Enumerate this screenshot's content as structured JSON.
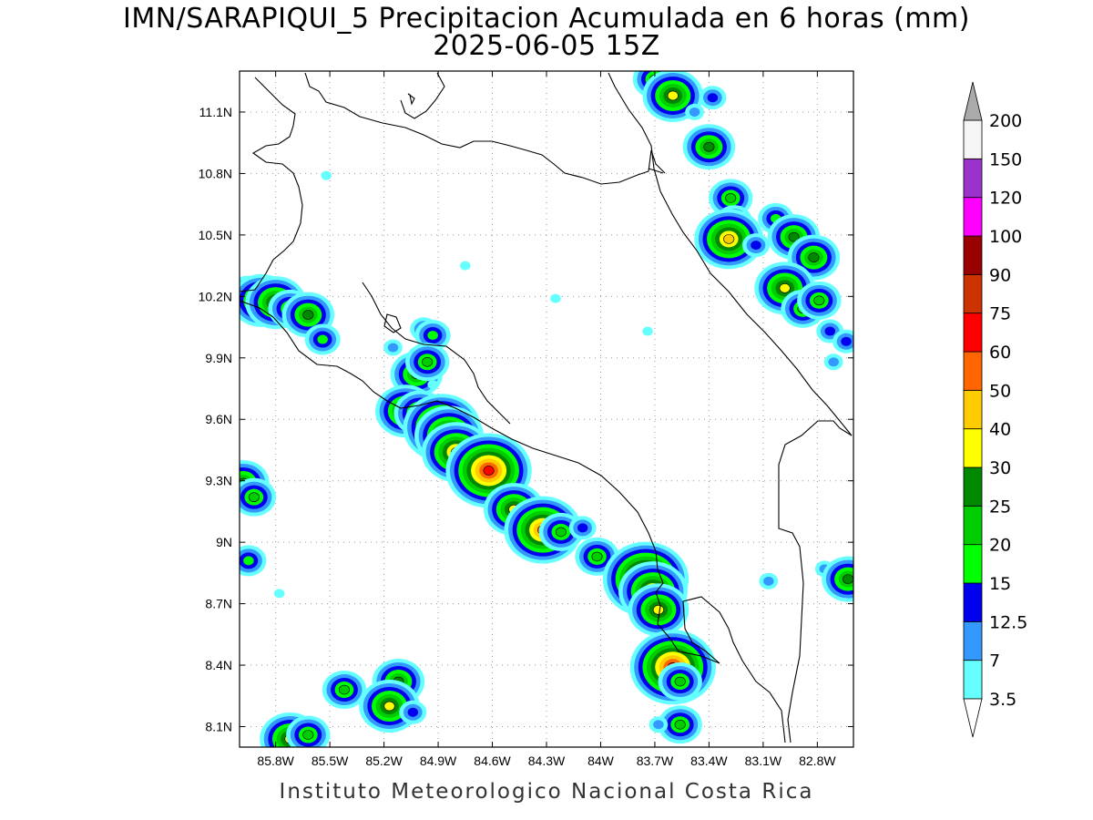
{
  "title": "IMN/SARAPIQUI_5 Precipitacion Acumulada en 6 horas (mm)",
  "subtitle": "2025-06-05 15Z",
  "footer": "Instituto Meteorologico Nacional Costa Rica",
  "map": {
    "lon_range": [
      -86.0,
      -82.6
    ],
    "lat_range": [
      8.0,
      11.3
    ],
    "lon_ticks": [
      {
        "lon": -85.8,
        "label": "85.8W"
      },
      {
        "lon": -85.5,
        "label": "85.5W"
      },
      {
        "lon": -85.2,
        "label": "85.2W"
      },
      {
        "lon": -84.9,
        "label": "84.9W"
      },
      {
        "lon": -84.6,
        "label": "84.6W"
      },
      {
        "lon": -84.3,
        "label": "84.3W"
      },
      {
        "lon": -84.0,
        "label": "84W"
      },
      {
        "lon": -83.7,
        "label": "83.7W"
      },
      {
        "lon": -83.4,
        "label": "83.4W"
      },
      {
        "lon": -83.1,
        "label": "83.1W"
      },
      {
        "lon": -82.8,
        "label": "82.8W"
      }
    ],
    "lat_ticks": [
      {
        "lat": 8.1,
        "label": "8.1N"
      },
      {
        "lat": 8.4,
        "label": "8.4N"
      },
      {
        "lat": 8.7,
        "label": "8.7N"
      },
      {
        "lat": 9.0,
        "label": "9N"
      },
      {
        "lat": 9.3,
        "label": "9.3N"
      },
      {
        "lat": 9.6,
        "label": "9.6N"
      },
      {
        "lat": 9.9,
        "label": "9.9N"
      },
      {
        "lat": 10.2,
        "label": "10.2N"
      },
      {
        "lat": 10.5,
        "label": "10.5N"
      },
      {
        "lat": 10.8,
        "label": "10.8N"
      },
      {
        "lat": 11.1,
        "label": "11.1N"
      }
    ],
    "grid": true,
    "precip_cells": [
      {
        "lon": -85.95,
        "lat": 10.19,
        "value": 25
      },
      {
        "lon": -85.88,
        "lat": 10.18,
        "value": 30
      },
      {
        "lon": -85.8,
        "lat": 10.17,
        "value": 30
      },
      {
        "lon": -85.72,
        "lat": 10.14,
        "value": 20
      },
      {
        "lon": -85.62,
        "lat": 10.11,
        "value": 25
      },
      {
        "lon": -85.54,
        "lat": 9.99,
        "value": 15
      },
      {
        "lon": -85.98,
        "lat": 9.29,
        "value": 25
      },
      {
        "lon": -85.92,
        "lat": 9.22,
        "value": 20
      },
      {
        "lon": -85.95,
        "lat": 8.91,
        "value": 15
      },
      {
        "lon": -85.15,
        "lat": 9.95,
        "value": 7
      },
      {
        "lon": -84.98,
        "lat": 10.04,
        "value": 12.5
      },
      {
        "lon": -84.93,
        "lat": 10.01,
        "value": 15
      },
      {
        "lon": -85.02,
        "lat": 9.82,
        "value": 25
      },
      {
        "lon": -84.96,
        "lat": 9.88,
        "value": 20
      },
      {
        "lon": -85.08,
        "lat": 9.64,
        "value": 30
      },
      {
        "lon": -85.0,
        "lat": 9.63,
        "value": 25
      },
      {
        "lon": -84.88,
        "lat": 9.56,
        "value": 50
      },
      {
        "lon": -84.84,
        "lat": 9.52,
        "value": 40
      },
      {
        "lon": -84.8,
        "lat": 9.44,
        "value": 40
      },
      {
        "lon": -84.68,
        "lat": 9.38,
        "value": 35
      },
      {
        "lon": -84.62,
        "lat": 9.35,
        "value": 60
      },
      {
        "lon": -84.48,
        "lat": 9.16,
        "value": 30
      },
      {
        "lon": -84.32,
        "lat": 9.06,
        "value": 50
      },
      {
        "lon": -84.22,
        "lat": 9.05,
        "value": 20
      },
      {
        "lon": -84.1,
        "lat": 9.07,
        "value": 12.5
      },
      {
        "lon": -84.02,
        "lat": 8.93,
        "value": 20
      },
      {
        "lon": -83.75,
        "lat": 8.82,
        "value": 60
      },
      {
        "lon": -83.71,
        "lat": 8.76,
        "value": 40
      },
      {
        "lon": -83.68,
        "lat": 8.67,
        "value": 30
      },
      {
        "lon": -83.6,
        "lat": 8.39,
        "value": 60
      },
      {
        "lon": -83.56,
        "lat": 8.32,
        "value": 20
      },
      {
        "lon": -83.56,
        "lat": 8.11,
        "value": 20
      },
      {
        "lon": -83.68,
        "lat": 8.11,
        "value": 7
      },
      {
        "lon": -85.42,
        "lat": 8.28,
        "value": 20
      },
      {
        "lon": -85.12,
        "lat": 8.32,
        "value": 25
      },
      {
        "lon": -85.17,
        "lat": 8.2,
        "value": 35
      },
      {
        "lon": -85.04,
        "lat": 8.17,
        "value": 12.5
      },
      {
        "lon": -85.72,
        "lat": 8.04,
        "value": 35
      },
      {
        "lon": -85.62,
        "lat": 8.06,
        "value": 20
      },
      {
        "lon": -83.7,
        "lat": 11.26,
        "value": 20
      },
      {
        "lon": -83.6,
        "lat": 11.18,
        "value": 30
      },
      {
        "lon": -83.38,
        "lat": 11.17,
        "value": 12.5
      },
      {
        "lon": -83.48,
        "lat": 11.1,
        "value": 7
      },
      {
        "lon": -83.4,
        "lat": 10.93,
        "value": 25
      },
      {
        "lon": -83.28,
        "lat": 10.68,
        "value": 20
      },
      {
        "lon": -83.26,
        "lat": 10.57,
        "value": 15
      },
      {
        "lon": -83.29,
        "lat": 10.48,
        "value": 40
      },
      {
        "lon": -83.14,
        "lat": 10.45,
        "value": 12.5
      },
      {
        "lon": -83.03,
        "lat": 10.58,
        "value": 15
      },
      {
        "lon": -82.93,
        "lat": 10.49,
        "value": 25
      },
      {
        "lon": -82.82,
        "lat": 10.39,
        "value": 25
      },
      {
        "lon": -82.98,
        "lat": 10.24,
        "value": 30
      },
      {
        "lon": -82.88,
        "lat": 10.14,
        "value": 20
      },
      {
        "lon": -82.79,
        "lat": 10.18,
        "value": 20
      },
      {
        "lon": -82.73,
        "lat": 10.03,
        "value": 12.5
      },
      {
        "lon": -82.64,
        "lat": 9.98,
        "value": 12.5
      },
      {
        "lon": -82.71,
        "lat": 9.88,
        "value": 7
      },
      {
        "lon": -82.76,
        "lat": 8.87,
        "value": 7
      },
      {
        "lon": -82.63,
        "lat": 8.82,
        "value": 25
      },
      {
        "lon": -83.07,
        "lat": 8.81,
        "value": 7
      },
      {
        "lon": -84.93,
        "lat": 9.77,
        "value": 3.5
      },
      {
        "lon": -85.78,
        "lat": 8.75,
        "value": 3.5
      },
      {
        "lon": -85.52,
        "lat": 10.79,
        "value": 3.5
      },
      {
        "lon": -84.75,
        "lat": 10.35,
        "value": 3.5
      },
      {
        "lon": -84.25,
        "lat": 10.19,
        "value": 3.5
      },
      {
        "lon": -83.74,
        "lat": 10.03,
        "value": 3.5
      }
    ]
  },
  "colorbar": {
    "levels": [
      "3.5",
      "7",
      "12.5",
      "15",
      "20",
      "25",
      "30",
      "40",
      "50",
      "60",
      "75",
      "90",
      "100",
      "120",
      "150",
      "200"
    ],
    "colors": [
      "#ffffff",
      "#66ffff",
      "#3399ff",
      "#0000ee",
      "#00ff00",
      "#00cc00",
      "#008800",
      "#ffff00",
      "#ffcc00",
      "#ff6600",
      "#ff0000",
      "#cc3300",
      "#990000",
      "#ff00ff",
      "#9933cc",
      "#f5f5f5",
      "#aaaaaa"
    ]
  }
}
